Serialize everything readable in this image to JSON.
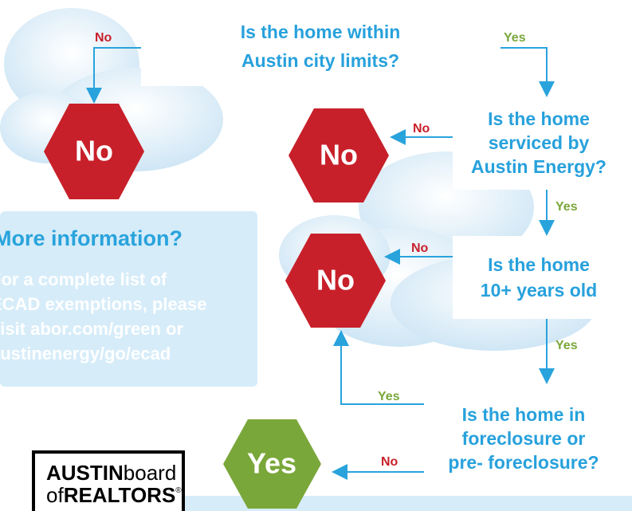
{
  "questions": [
    {
      "lines": [
        "Is the home within",
        "Austin city limits?"
      ],
      "yes": "Yes",
      "no": "No"
    },
    {
      "lines": [
        "Is the home",
        "serviced by",
        "Austin Energy?"
      ],
      "yes": "Yes",
      "no": "No"
    },
    {
      "lines": [
        "Is the home",
        "10+ years old"
      ],
      "yes": "Yes",
      "no": "No"
    },
    {
      "lines": [
        "Is the home in",
        "foreclosure or",
        "pre- foreclosure?"
      ],
      "yes": "Yes",
      "no": "No"
    }
  ],
  "outcomes": [
    {
      "label": "No"
    },
    {
      "label": "No"
    },
    {
      "label": "No"
    },
    {
      "label": "Yes"
    }
  ],
  "info": {
    "title": "More information?",
    "lines": [
      "For a complete list of",
      "ECAD exemptions, please",
      "visit abor.com/green or",
      "austinenergy/go/ecad"
    ]
  },
  "logo": {
    "austin": "AUSTIN",
    "board": "board",
    "of": "of",
    "realtors": "REALTORS",
    "mark": "®"
  }
}
